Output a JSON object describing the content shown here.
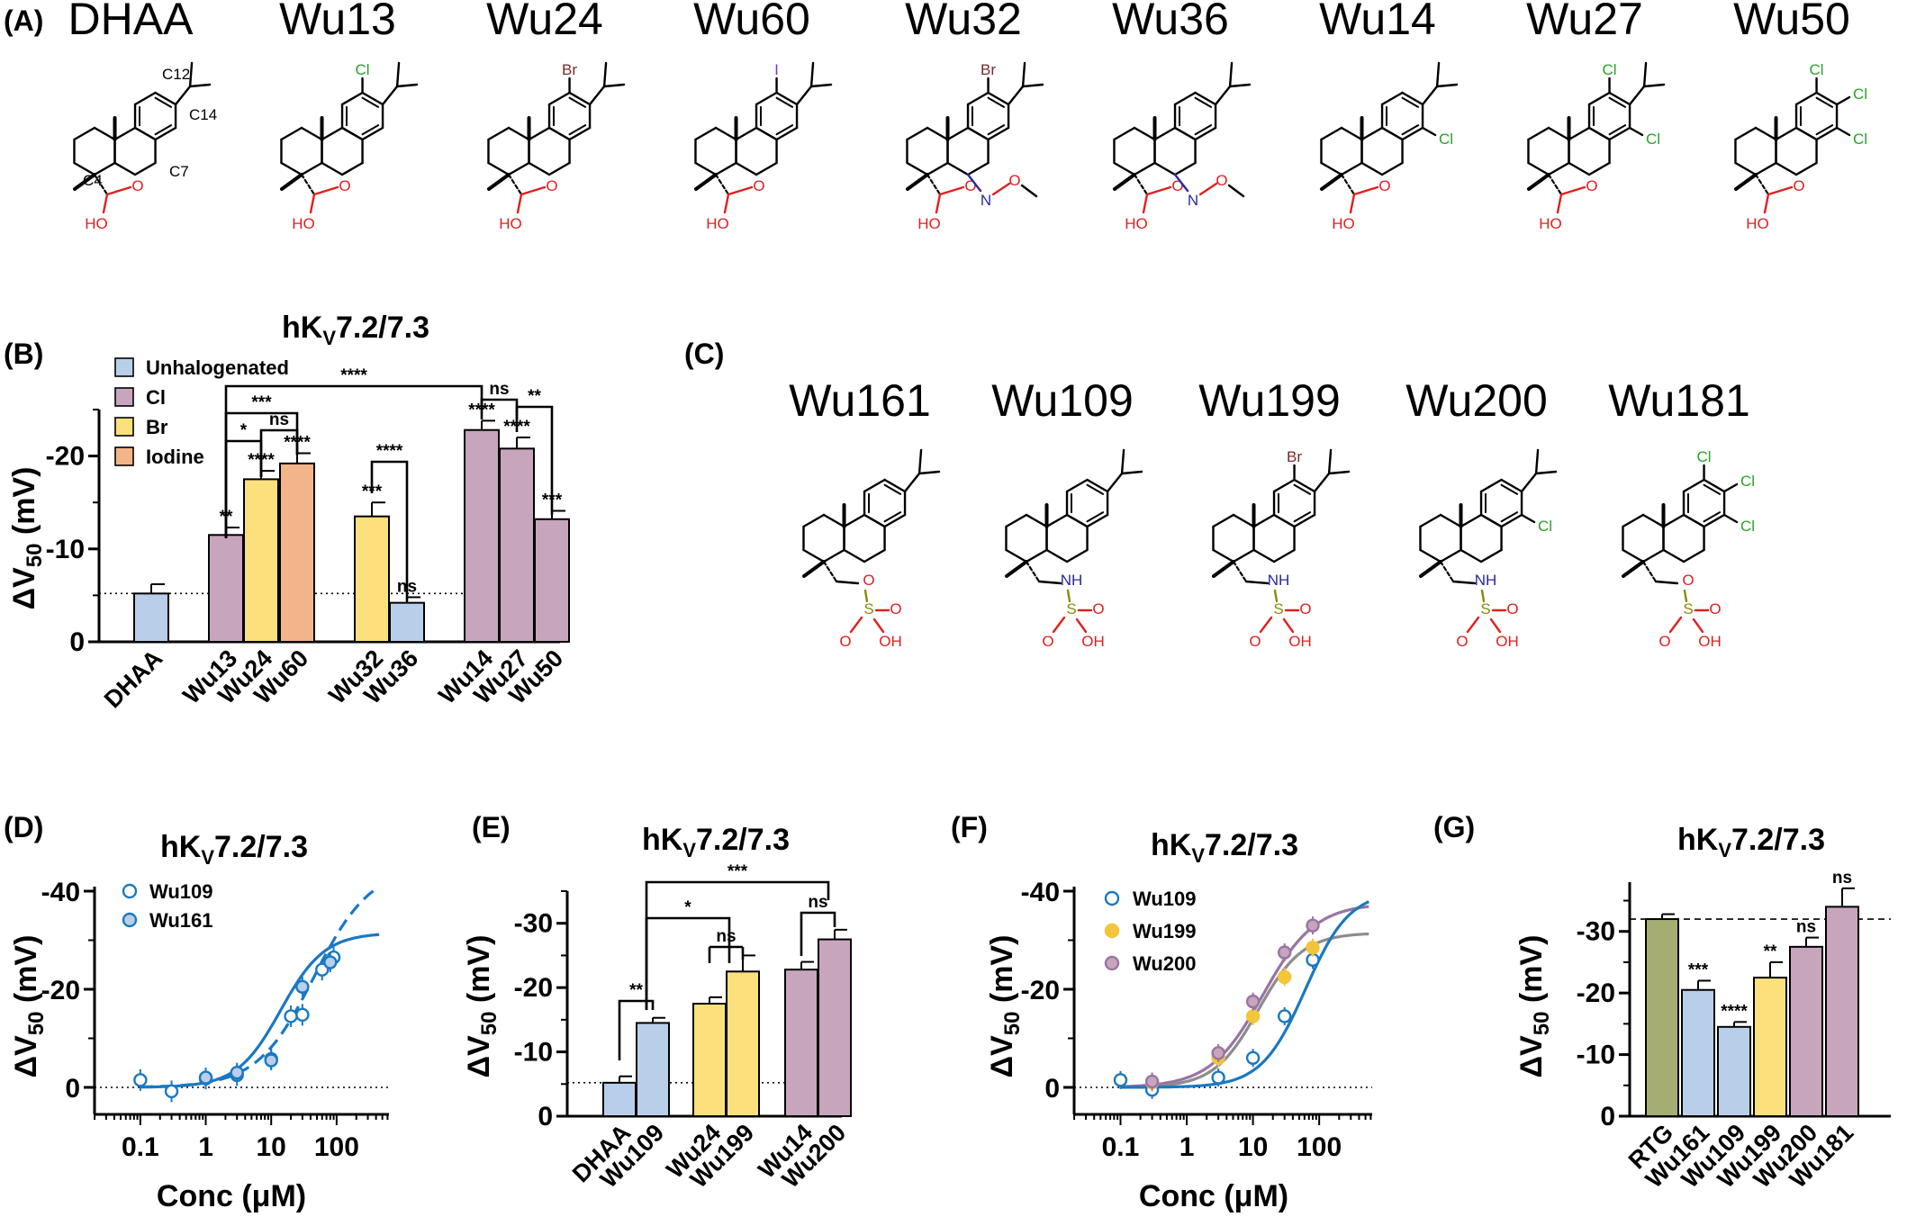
{
  "panels": {
    "A": "(A)",
    "B": "(B)",
    "C": "(C)",
    "D": "(D)",
    "E": "(E)",
    "F": "(F)",
    "G": "(G)"
  },
  "structures_A": {
    "names": [
      "DHAA",
      "Wu13",
      "Wu24",
      "Wu60",
      "Wu32",
      "Wu36",
      "Wu14",
      "Wu27",
      "Wu50"
    ],
    "atom_labels": [
      "C12",
      "C14",
      "C7",
      "C4"
    ],
    "substituents": [
      "Cl",
      "Br",
      "I",
      "Br",
      "Cl",
      "Cl",
      "Cl",
      "Cl",
      "Cl",
      "Cl"
    ],
    "groups": [
      "O",
      "HO",
      "N",
      "O"
    ]
  },
  "structures_C": {
    "names": [
      "Wu161",
      "Wu109",
      "Wu199",
      "Wu200",
      "Wu181"
    ],
    "groups": [
      "O",
      "NH",
      "S",
      "O",
      "OH"
    ],
    "substituents": [
      "Br",
      "Cl",
      "Cl",
      "Cl",
      "Cl"
    ]
  },
  "common": {
    "title_main": "hK",
    "title_sub": "V",
    "title_tail": "7.2/7.3",
    "ylabel_main": "ΔV",
    "ylabel_sub": "50",
    "ylabel_unit": " (mV)",
    "xlabel_conc": "Conc (μM)"
  },
  "colors": {
    "unhalogenated": "#b9cfe9",
    "cl": "#c7a6bd",
    "br": "#fbe07c",
    "iodine": "#f3b48a",
    "rtg": "#a6ad72",
    "curve_blue": "#1a78c2",
    "curve_purple": "#9a73a3",
    "curve_gray": "#8c8c8c",
    "chlorine": "#2aa02a",
    "bromine": "#7b2a2a",
    "iodine_atom": "#8a2be2",
    "oxygen": "#e02020",
    "nitrogen": "#2a2aa0",
    "sulfur": "#8a8a10"
  },
  "chart_data": [
    {
      "panel": "B",
      "type": "bar",
      "title": "hKV7.2/7.3",
      "ylabel": "ΔV50 (mV)",
      "ylim": [
        0,
        -25
      ],
      "yticks": [
        "0",
        "-10",
        "-20"
      ],
      "legend": [
        "Unhalogenated",
        "Cl",
        "Br",
        "Iodine"
      ],
      "legend_position": "top-left",
      "categories": [
        "DHAA",
        "Wu13",
        "Wu24",
        "Wu60",
        "Wu32",
        "Wu36",
        "Wu14",
        "Wu27",
        "Wu50"
      ],
      "values": [
        -5.2,
        -11.5,
        -17.5,
        -19.2,
        -13.5,
        -4.2,
        -22.8,
        -20.8,
        -13.2
      ],
      "errors": [
        1.0,
        0.8,
        0.9,
        1.1,
        1.5,
        0.6,
        1.0,
        1.2,
        0.9
      ],
      "groups": [
        "Unhalogenated",
        "Cl",
        "Br",
        "Iodine",
        "Br",
        "Unhalogenated",
        "Cl",
        "Cl",
        "Cl"
      ],
      "significance": [
        "",
        "**",
        "****",
        "****",
        "***",
        "ns",
        "****",
        "****",
        "***"
      ],
      "comparisons": [
        "****",
        "***",
        "*",
        "ns",
        "****",
        "ns",
        "**"
      ],
      "reference_line": -5.2
    },
    {
      "panel": "D",
      "type": "scatter",
      "title": "hKV7.2/7.3",
      "xlabel": "Conc (μM)",
      "ylabel": "ΔV50 (mV)",
      "xscale": "log",
      "xticks": [
        "0.1",
        "1",
        "10",
        "100"
      ],
      "yticks": [
        "0",
        "-20",
        "-40"
      ],
      "ylim": [
        0,
        -40
      ],
      "series": [
        {
          "name": "Wu109",
          "x": [
            0.1,
            0.3,
            1,
            3,
            10,
            20,
            30,
            60,
            90
          ],
          "y": [
            -1.5,
            0.8,
            -1.8,
            -2.5,
            -5.8,
            -14.5,
            -14.8,
            -24,
            -26.5
          ]
        },
        {
          "name": "Wu161",
          "x": [
            1,
            3,
            10,
            30,
            80
          ],
          "y": [
            -2,
            -3,
            -5.5,
            -20.5,
            -25.5
          ]
        }
      ]
    },
    {
      "panel": "E",
      "type": "bar",
      "title": "hKV7.2/7.3",
      "ylabel": "ΔV50 (mV)",
      "ylim": [
        0,
        -35
      ],
      "yticks": [
        "0",
        "-10",
        "-20",
        "-30"
      ],
      "categories": [
        "DHAA",
        "Wu109",
        "Wu24",
        "Wu199",
        "Wu14",
        "Wu200"
      ],
      "values": [
        -5.2,
        -14.5,
        -17.5,
        -22.5,
        -22.8,
        -27.5
      ],
      "errors": [
        1.0,
        0.8,
        1.0,
        2.5,
        1.2,
        1.5
      ],
      "groups": [
        "Unhalogenated",
        "Unhalogenated",
        "Br",
        "Br",
        "Cl",
        "Cl"
      ],
      "comparisons": [
        "**",
        "ns",
        "ns",
        "*",
        "***"
      ],
      "reference_line": -5.2
    },
    {
      "panel": "F",
      "type": "scatter",
      "title": "hKV7.2/7.3",
      "xlabel": "Conc (μM)",
      "ylabel": "ΔV50 (mV)",
      "xscale": "log",
      "xticks": [
        "0.1",
        "1",
        "10",
        "100"
      ],
      "yticks": [
        "0",
        "-20",
        "-40"
      ],
      "ylim": [
        0,
        -40
      ],
      "series": [
        {
          "name": "Wu109",
          "x": [
            0.1,
            0.3,
            3,
            10,
            30,
            80
          ],
          "y": [
            -1.5,
            0.5,
            -2,
            -6,
            -14.5,
            -26
          ]
        },
        {
          "name": "Wu199",
          "x": [
            0.3,
            3,
            10,
            30,
            80
          ],
          "y": [
            -1,
            -6,
            -14.5,
            -22.5,
            -28.5
          ]
        },
        {
          "name": "Wu200",
          "x": [
            0.3,
            3,
            10,
            30,
            80
          ],
          "y": [
            -1.2,
            -7,
            -17.5,
            -27.5,
            -33
          ]
        }
      ]
    },
    {
      "panel": "G",
      "type": "bar",
      "title": "hKV7.2/7.3",
      "ylabel": "ΔV50 (mV)",
      "ylim": [
        0,
        -38
      ],
      "yticks": [
        "0",
        "-10",
        "-20",
        "-30"
      ],
      "categories": [
        "RTG",
        "Wu161",
        "Wu109",
        "Wu199",
        "Wu200",
        "Wu181"
      ],
      "values": [
        -32,
        -20.5,
        -14.5,
        -22.5,
        -27.5,
        -34
      ],
      "errors": [
        0.8,
        1.5,
        0.8,
        2.5,
        1.5,
        3.0
      ],
      "groups": [
        "RTG",
        "Unhalogenated",
        "Unhalogenated",
        "Br",
        "Cl",
        "Cl"
      ],
      "significance": [
        "",
        "***",
        "****",
        "**",
        "ns",
        "ns"
      ],
      "reference_line": -32
    }
  ]
}
